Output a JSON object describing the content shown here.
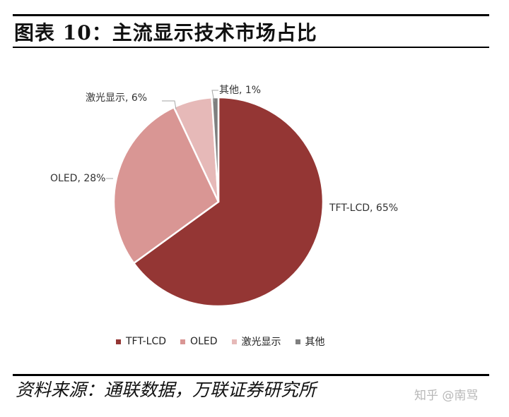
{
  "header": {
    "title": "图表 10：主流显示技术市场占比"
  },
  "footer": {
    "source": "资料来源：通联数据，万联证券研究所",
    "watermark": "知乎 @南骂"
  },
  "chart_data": {
    "type": "pie",
    "title": "",
    "labels": [
      "TFT-LCD",
      "OLED",
      "激光显示",
      "其他"
    ],
    "values": [
      65,
      28,
      6,
      1
    ],
    "unit": "%",
    "data_labels": [
      "TFT-LCD, 65%",
      "OLED, 28%",
      "激光显示, 6%",
      "其他, 1%"
    ],
    "colors": [
      "#943634",
      "#D99694",
      "#E6B9B8",
      "#7F7F7F"
    ],
    "legend_position": "bottom"
  }
}
